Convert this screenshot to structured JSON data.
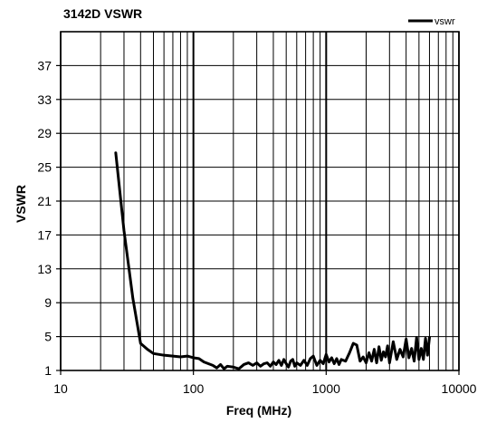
{
  "chart_data": {
    "type": "line",
    "title": "3142D VSWR",
    "xlabel": "Freq (MHz)",
    "ylabel": "VSWR",
    "x_scale": "log",
    "xlim": [
      10,
      10000
    ],
    "ylim": [
      1,
      41
    ],
    "x_ticks": [
      10,
      100,
      1000,
      10000
    ],
    "x_tick_labels": [
      "10",
      "100",
      "1000",
      "10000"
    ],
    "y_ticks": [
      1,
      5,
      9,
      13,
      17,
      21,
      25,
      29,
      33,
      37
    ],
    "y_tick_labels": [
      "1",
      "5",
      "9",
      "13",
      "17",
      "21",
      "25",
      "29",
      "33",
      "37"
    ],
    "grid": true,
    "legend_position": "top-right",
    "series": [
      {
        "name": "vswr",
        "color": "#000000",
        "x": [
          26,
          30,
          35,
          40,
          45,
          50,
          60,
          70,
          80,
          90,
          100,
          110,
          120,
          140,
          150,
          160,
          170,
          180,
          200,
          220,
          240,
          260,
          280,
          300,
          320,
          340,
          360,
          380,
          400,
          420,
          440,
          460,
          480,
          500,
          520,
          540,
          560,
          580,
          600,
          640,
          680,
          720,
          760,
          800,
          850,
          900,
          950,
          1000,
          1050,
          1100,
          1150,
          1200,
          1250,
          1300,
          1400,
          1500,
          1600,
          1700,
          1800,
          1900,
          2000,
          2100,
          2200,
          2300,
          2400,
          2500,
          2600,
          2700,
          2800,
          2900,
          3000,
          3200,
          3400,
          3600,
          3800,
          4000,
          4200,
          4400,
          4600,
          4800,
          5000,
          5200,
          5400,
          5600,
          5800,
          6000
        ],
        "y": [
          26.7,
          17.5,
          9.5,
          4.2,
          3.5,
          3.0,
          2.8,
          2.7,
          2.6,
          2.7,
          2.5,
          2.4,
          2.0,
          1.6,
          1.3,
          1.7,
          1.2,
          1.5,
          1.4,
          1.2,
          1.7,
          1.9,
          1.6,
          1.9,
          1.5,
          1.8,
          1.9,
          1.5,
          2.0,
          1.7,
          2.2,
          1.6,
          2.3,
          1.8,
          1.4,
          2.1,
          2.3,
          1.5,
          1.9,
          1.6,
          2.2,
          1.6,
          2.4,
          2.7,
          1.6,
          2.2,
          1.8,
          2.9,
          2.0,
          2.5,
          1.8,
          2.4,
          1.7,
          2.3,
          2.1,
          3.1,
          4.2,
          4.0,
          2.1,
          2.6,
          1.9,
          3.1,
          2.1,
          3.5,
          1.9,
          3.8,
          2.2,
          3.2,
          2.6,
          3.9,
          1.9,
          4.4,
          2.3,
          3.5,
          2.6,
          4.7,
          2.5,
          3.6,
          2.1,
          4.9,
          2.3,
          3.6,
          2.3,
          4.8,
          2.8,
          4.9
        ]
      }
    ]
  }
}
